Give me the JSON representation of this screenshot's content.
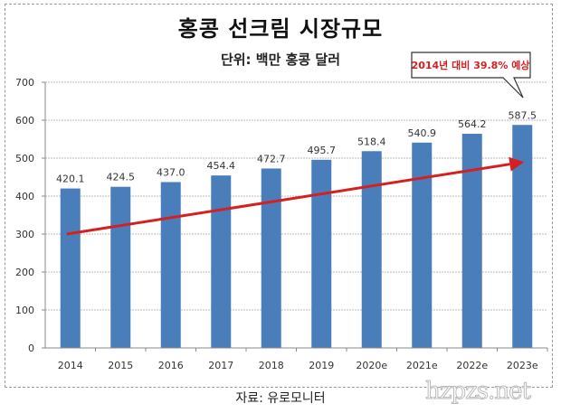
{
  "chart_data": {
    "type": "bar",
    "title": "홍콩 선크림 시장규모",
    "subtitle": "단위: 백만 홍콩 달러",
    "categories": [
      "2014",
      "2015",
      "2016",
      "2017",
      "2018",
      "2019",
      "2020e",
      "2021e",
      "2022e",
      "2023e"
    ],
    "values": [
      420.1,
      424.5,
      437.0,
      454.4,
      472.7,
      495.7,
      518.4,
      540.9,
      564.2,
      587.5
    ],
    "value_labels": [
      "420.1",
      "424.5",
      "437.0",
      "454.4",
      "472.7",
      "495.7",
      "518.4",
      "540.9",
      "564.2",
      "587.5"
    ],
    "ylim": [
      0,
      700
    ],
    "yticks": [
      "0",
      "100",
      "200",
      "300",
      "400",
      "500",
      "600",
      "700"
    ],
    "ytick_values": [
      0,
      100,
      200,
      300,
      400,
      500,
      600,
      700
    ],
    "grid": true,
    "xlabel": "",
    "ylabel": "",
    "annotation": "2014년 대비 39.8% 예상",
    "trend_arrow": {
      "from": {
        "category": "2014",
        "value": 300
      },
      "to": {
        "category": "2023e",
        "value": 490
      }
    },
    "source": "자료: 유로모니터",
    "colors": {
      "bar": "#4a7ebb",
      "arrow": "#d42020",
      "annotation_text": "#d42020",
      "grid": "#bbbbbb"
    }
  },
  "watermark": "hzpzs.net"
}
